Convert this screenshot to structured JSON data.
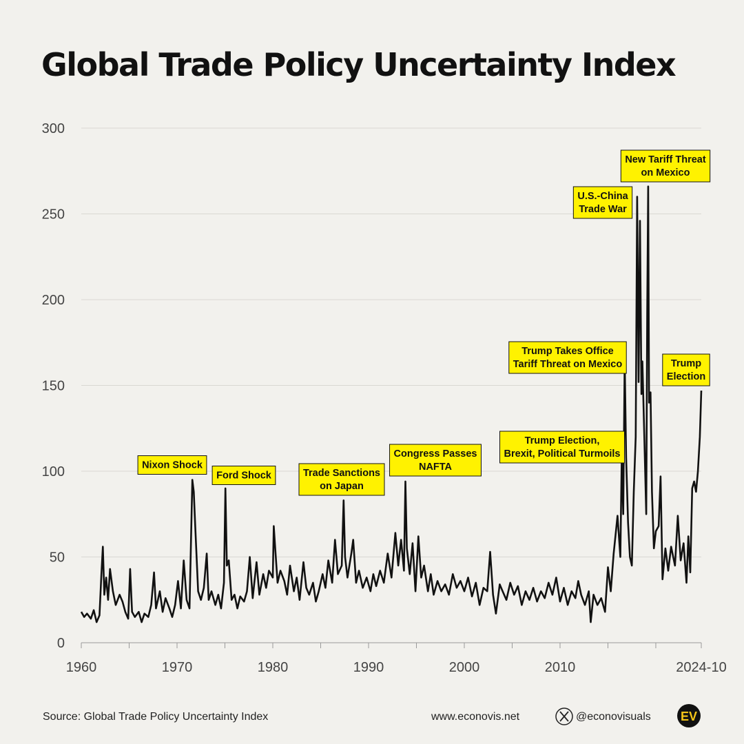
{
  "chart_data": {
    "type": "line",
    "title": "Global Trade Policy Uncertainty Index",
    "source": "Source: Global Trade Policy Uncertainty Index",
    "website": "www.econovis.net",
    "handle": "@econovisuals",
    "logo": "EV",
    "xlim": [
      1960,
      2024.75
    ],
    "ylim": [
      0,
      300
    ],
    "yticks": [
      0,
      50,
      100,
      150,
      200,
      250,
      300
    ],
    "xticks": [
      1960,
      1970,
      1980,
      1990,
      2000,
      2010,
      {
        "value": 2024.75,
        "label": "2024-10"
      }
    ],
    "xminorticks": [
      1965,
      1975,
      1985,
      1995,
      2005,
      2015,
      2020
    ],
    "grid": true,
    "color": "#111111",
    "annotations": [
      [
        "Nixon Shock"
      ],
      [
        "Ford Shock"
      ],
      [
        "Trade Sanctions",
        "on Japan"
      ],
      [
        "Congress Passes",
        "NAFTA"
      ],
      [
        "Trump Election,",
        "Brexit, Political Turmoils"
      ],
      [
        "Trump Takes Office",
        "Tariff Threat on Mexico"
      ],
      [
        "U.S.-China",
        "Trade War"
      ],
      [
        "New Tariff Threat",
        "on Mexico"
      ],
      [
        "Trump",
        "Election"
      ]
    ],
    "x": [
      1960,
      1960.3,
      1960.6,
      1961,
      1961.3,
      1961.6,
      1961.9,
      1962.1,
      1962.25,
      1962.4,
      1962.6,
      1962.8,
      1963,
      1963.3,
      1963.6,
      1964,
      1964.3,
      1964.6,
      1964.9,
      1965.1,
      1965.3,
      1965.6,
      1966,
      1966.3,
      1966.6,
      1967,
      1967.3,
      1967.6,
      1967.8,
      1968.2,
      1968.5,
      1968.8,
      1969.2,
      1969.5,
      1969.8,
      1970.1,
      1970.4,
      1970.7,
      1971,
      1971.3,
      1971.6,
      1971.75,
      1971.9,
      1972.2,
      1972.5,
      1972.8,
      1973.1,
      1973.3,
      1973.6,
      1974,
      1974.3,
      1974.6,
      1974.9,
      1975.05,
      1975.2,
      1975.4,
      1975.7,
      1976,
      1976.3,
      1976.6,
      1977,
      1977.3,
      1977.6,
      1977.9,
      1978.3,
      1978.6,
      1979,
      1979.3,
      1979.6,
      1980,
      1980.1,
      1980.25,
      1980.5,
      1980.8,
      1981.2,
      1981.5,
      1981.8,
      1982.2,
      1982.5,
      1982.8,
      1983.2,
      1983.5,
      1983.8,
      1984.2,
      1984.5,
      1984.8,
      1985.2,
      1985.5,
      1985.8,
      1986.2,
      1986.5,
      1986.8,
      1987.2,
      1987.4,
      1987.55,
      1987.8,
      1988.2,
      1988.4,
      1988.7,
      1989,
      1989.4,
      1989.8,
      1990.2,
      1990.5,
      1990.8,
      1991.2,
      1991.6,
      1992,
      1992.4,
      1992.8,
      1993.1,
      1993.4,
      1993.7,
      1993.85,
      1994,
      1994.3,
      1994.6,
      1994.9,
      1995.2,
      1995.5,
      1995.8,
      1996.2,
      1996.5,
      1996.8,
      1997.2,
      1997.6,
      1998,
      1998.4,
      1998.8,
      1999.2,
      1999.6,
      2000,
      2000.4,
      2000.8,
      2001.2,
      2001.6,
      2002,
      2002.4,
      2002.7,
      2003,
      2003.3,
      2003.7,
      2004,
      2004.4,
      2004.8,
      2005.2,
      2005.6,
      2006,
      2006.4,
      2006.8,
      2007.2,
      2007.6,
      2008,
      2008.4,
      2008.8,
      2009.2,
      2009.6,
      2010,
      2010.4,
      2010.8,
      2011.2,
      2011.6,
      2011.9,
      2012.2,
      2012.6,
      2013,
      2013.2,
      2013.5,
      2013.9,
      2014.3,
      2014.7,
      2015,
      2015.3,
      2015.6,
      2016,
      2016.3,
      2016.45,
      2016.6,
      2016.75,
      2016.9,
      2017.1,
      2017.3,
      2017.5,
      2017.7,
      2017.9,
      2018.05,
      2018.2,
      2018.35,
      2018.5,
      2018.6,
      2018.8,
      2019,
      2019.1,
      2019.2,
      2019.3,
      2019.45,
      2019.6,
      2019.8,
      2020,
      2020.3,
      2020.5,
      2020.7,
      2021,
      2021.3,
      2021.6,
      2022,
      2022.3,
      2022.6,
      2022.9,
      2023.2,
      2023.4,
      2023.6,
      2023.8,
      2024,
      2024.2,
      2024.4,
      2024.6,
      2024.75
    ],
    "values": [
      18,
      15,
      17,
      14,
      19,
      12,
      16,
      40,
      56,
      28,
      38,
      25,
      43,
      30,
      22,
      28,
      24,
      18,
      14,
      43,
      18,
      15,
      18,
      12,
      17,
      15,
      22,
      41,
      20,
      30,
      18,
      26,
      20,
      15,
      22,
      36,
      20,
      48,
      25,
      20,
      95,
      88,
      68,
      30,
      25,
      32,
      52,
      25,
      30,
      22,
      28,
      20,
      35,
      90,
      45,
      48,
      25,
      28,
      20,
      27,
      24,
      30,
      50,
      26,
      47,
      28,
      40,
      32,
      42,
      38,
      68,
      55,
      35,
      42,
      36,
      28,
      45,
      30,
      38,
      25,
      47,
      32,
      28,
      35,
      24,
      30,
      40,
      32,
      48,
      35,
      60,
      40,
      45,
      83,
      50,
      38,
      52,
      60,
      35,
      42,
      32,
      38,
      30,
      40,
      33,
      42,
      35,
      52,
      38,
      64,
      45,
      60,
      42,
      94,
      55,
      40,
      58,
      30,
      62,
      38,
      45,
      30,
      40,
      28,
      36,
      30,
      34,
      28,
      40,
      32,
      36,
      30,
      38,
      27,
      35,
      22,
      32,
      30,
      53,
      28,
      17,
      34,
      30,
      25,
      35,
      28,
      33,
      22,
      30,
      25,
      32,
      24,
      30,
      26,
      35,
      28,
      38,
      24,
      32,
      22,
      30,
      26,
      36,
      28,
      22,
      30,
      12,
      28,
      22,
      26,
      18,
      44,
      30,
      52,
      74,
      50,
      110,
      75,
      165,
      108,
      70,
      50,
      45,
      88,
      120,
      260,
      152,
      246,
      145,
      164,
      120,
      75,
      192,
      266,
      140,
      146,
      88,
      55,
      65,
      68,
      97,
      37,
      55,
      42,
      56,
      45,
      74,
      48,
      58,
      35,
      62,
      41,
      90,
      94,
      88,
      100,
      120,
      147
    ]
  }
}
